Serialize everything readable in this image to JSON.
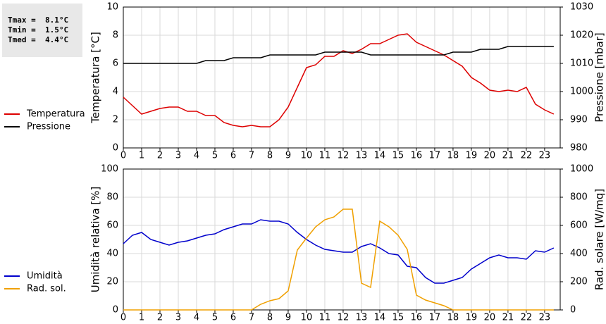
{
  "stats": [
    "Tmax =  8.1°C",
    "Tmin =  1.5°C",
    "Tmed =  4.4°C"
  ],
  "chart_data": [
    {
      "type": "line",
      "ylabel": "Temperatura [°C]",
      "y2label": "Pressione [mbar]",
      "x": [
        0,
        0.5,
        1,
        1.5,
        2,
        2.5,
        3,
        3.5,
        4,
        4.5,
        5,
        5.5,
        6,
        6.5,
        7,
        7.5,
        8,
        8.5,
        9,
        9.5,
        10,
        10.5,
        11,
        11.5,
        12,
        12.5,
        13,
        13.5,
        14,
        14.5,
        15,
        15.5,
        16,
        16.5,
        17,
        17.5,
        18,
        18.5,
        19,
        19.5,
        20,
        20.5,
        21,
        21.5,
        22,
        22.5,
        23,
        23.5
      ],
      "series": [
        {
          "name": "Temperatura",
          "color": "#dd0000",
          "values": [
            3.6,
            3.0,
            2.4,
            2.6,
            2.8,
            2.9,
            2.9,
            2.6,
            2.6,
            2.3,
            2.3,
            1.8,
            1.6,
            1.5,
            1.6,
            1.5,
            1.5,
            2.0,
            2.9,
            4.3,
            5.7,
            5.9,
            6.5,
            6.5,
            6.9,
            6.7,
            7.0,
            7.4,
            7.4,
            7.7,
            8.0,
            8.1,
            7.5,
            7.2,
            6.9,
            6.6,
            6.2,
            5.8,
            5.0,
            4.6,
            4.1,
            4.0,
            4.1,
            4.0,
            4.3,
            3.1,
            2.7,
            2.4
          ]
        },
        {
          "name": "Pressione",
          "color": "#000000",
          "axis": "y2",
          "values": [
            1010,
            1010,
            1010,
            1010,
            1010,
            1010,
            1010,
            1010,
            1010,
            1011,
            1011,
            1011,
            1012,
            1012,
            1012,
            1012,
            1013,
            1013,
            1013,
            1013,
            1013,
            1013,
            1014,
            1014,
            1014,
            1014,
            1014,
            1013,
            1013,
            1013,
            1013,
            1013,
            1013,
            1013,
            1013,
            1013,
            1014,
            1014,
            1014,
            1015,
            1015,
            1015,
            1016,
            1016,
            1016,
            1016,
            1016,
            1016
          ]
        }
      ],
      "xlim": [
        0,
        23.85
      ],
      "xticks": [
        0,
        1,
        2,
        3,
        4,
        5,
        6,
        7,
        8,
        9,
        10,
        11,
        12,
        13,
        14,
        15,
        16,
        17,
        18,
        19,
        20,
        21,
        22,
        23
      ],
      "ylim": [
        0,
        10
      ],
      "yticks": [
        0,
        2,
        4,
        6,
        8,
        10
      ],
      "y2lim": [
        980,
        1030
      ],
      "y2ticks": [
        980,
        990,
        1000,
        1010,
        1020,
        1030
      ],
      "grid": true,
      "legend": "left"
    },
    {
      "type": "line",
      "ylabel": "Umidità relativa [%]",
      "y2label": "Rad. solare [W/mq]",
      "x": [
        0,
        0.5,
        1,
        1.5,
        2,
        2.5,
        3,
        3.5,
        4,
        4.5,
        5,
        5.5,
        6,
        6.5,
        7,
        7.5,
        8,
        8.5,
        9,
        9.5,
        10,
        10.5,
        11,
        11.5,
        12,
        12.5,
        13,
        13.5,
        14,
        14.5,
        15,
        15.5,
        16,
        16.5,
        17,
        17.5,
        18,
        18.5,
        19,
        19.5,
        20,
        20.5,
        21,
        21.5,
        22,
        22.5,
        23,
        23.5
      ],
      "series": [
        {
          "name": "Umidità",
          "color": "#0000cc",
          "values": [
            47,
            53,
            55,
            50,
            48,
            46,
            48,
            49,
            51,
            53,
            54,
            57,
            59,
            61,
            61,
            64,
            63,
            63,
            61,
            55,
            50,
            46,
            43,
            42,
            41,
            41,
            45,
            47,
            44,
            40,
            39,
            31,
            30,
            23,
            19,
            19,
            21,
            23,
            29,
            33,
            37,
            39,
            37,
            37,
            36,
            42,
            41,
            44
          ]
        },
        {
          "name": "Rad. sol.",
          "color": "#f0a000",
          "axis": "y2",
          "values": [
            0,
            0,
            0,
            0,
            0,
            0,
            0,
            0,
            0,
            0,
            0,
            0,
            0,
            0,
            0,
            40,
            65,
            80,
            135,
            425,
            510,
            590,
            640,
            660,
            715,
            715,
            190,
            160,
            630,
            590,
            530,
            430,
            105,
            70,
            50,
            30,
            0,
            0,
            0,
            0,
            0,
            0,
            0,
            0,
            0,
            0,
            0,
            0
          ]
        }
      ],
      "xlim": [
        0,
        23.85
      ],
      "xticks": [
        0,
        1,
        2,
        3,
        4,
        5,
        6,
        7,
        8,
        9,
        10,
        11,
        12,
        13,
        14,
        15,
        16,
        17,
        18,
        19,
        20,
        21,
        22,
        23
      ],
      "ylim": [
        0,
        100
      ],
      "yticks": [
        0,
        20,
        40,
        60,
        80,
        100
      ],
      "y2lim": [
        0,
        1000
      ],
      "y2ticks": [
        0,
        200,
        400,
        600,
        800,
        1000
      ],
      "grid": true,
      "legend": "left"
    }
  ]
}
